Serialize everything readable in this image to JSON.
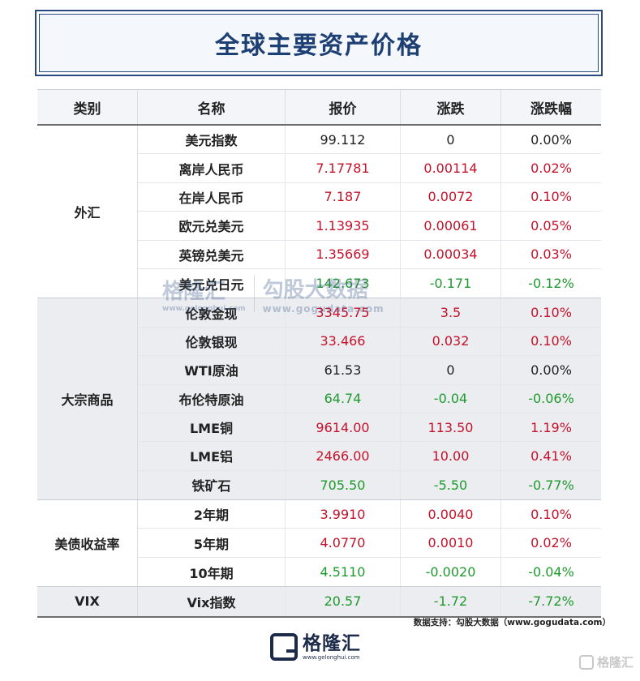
{
  "title": "全球主要资产价格",
  "headers": [
    "类别",
    "名称",
    "报价",
    "涨跌",
    "涨跌幅"
  ],
  "groups": [
    {
      "category": "外汇",
      "rows": [
        {
          "name": "美元指数",
          "price": "99.112",
          "change": "0",
          "pct": "0.00%",
          "trend": "flat"
        },
        {
          "name": "离岸人民币",
          "price": "7.17781",
          "change": "0.00114",
          "pct": "0.02%",
          "trend": "up"
        },
        {
          "name": "在岸人民币",
          "price": "7.187",
          "change": "0.0072",
          "pct": "0.10%",
          "trend": "up"
        },
        {
          "name": "欧元兑美元",
          "price": "1.13935",
          "change": "0.00061",
          "pct": "0.05%",
          "trend": "up"
        },
        {
          "name": "英镑兑美元",
          "price": "1.35669",
          "change": "0.00034",
          "pct": "0.03%",
          "trend": "up"
        },
        {
          "name": "美元兑日元",
          "price": "142.673",
          "change": "-0.171",
          "pct": "-0.12%",
          "trend": "down"
        }
      ]
    },
    {
      "category": "大宗商品",
      "rows": [
        {
          "name": "伦敦金现",
          "price": "3345.75",
          "change": "3.5",
          "pct": "0.10%",
          "trend": "up"
        },
        {
          "name": "伦敦银现",
          "price": "33.466",
          "change": "0.032",
          "pct": "0.10%",
          "trend": "up"
        },
        {
          "name": "WTI原油",
          "price": "61.53",
          "change": "0",
          "pct": "0.00%",
          "trend": "flat"
        },
        {
          "name": "布伦特原油",
          "price": "64.74",
          "change": "-0.04",
          "pct": "-0.06%",
          "trend": "down"
        },
        {
          "name": "LME铜",
          "price": "9614.00",
          "change": "113.50",
          "pct": "1.19%",
          "trend": "up"
        },
        {
          "name": "LME铝",
          "price": "2466.00",
          "change": "10.00",
          "pct": "0.41%",
          "trend": "up"
        },
        {
          "name": "铁矿石",
          "price": "705.50",
          "change": "-5.50",
          "pct": "-0.77%",
          "trend": "down"
        }
      ]
    },
    {
      "category": "美债收益率",
      "rows": [
        {
          "name": "2年期",
          "price": "3.9910",
          "change": "0.0040",
          "pct": "0.10%",
          "trend": "up"
        },
        {
          "name": "5年期",
          "price": "4.0770",
          "change": "0.0010",
          "pct": "0.02%",
          "trend": "up"
        },
        {
          "name": "10年期",
          "price": "4.5110",
          "change": "-0.0020",
          "pct": "-0.04%",
          "trend": "down"
        }
      ]
    },
    {
      "category": "VIX",
      "rows": [
        {
          "name": "Vix指数",
          "price": "20.57",
          "change": "-1.72",
          "pct": "-7.72%",
          "trend": "down"
        }
      ]
    }
  ],
  "source": "数据支持：勾股大数据（www.gogudata.com）",
  "logo": {
    "name": "格隆汇",
    "url": "www.gelonghui.com",
    "icon": "gelonghui-logo-icon"
  },
  "watermarks": {
    "center_left": "格隆汇",
    "center_left_url": "www.gelonghui.com",
    "center_right": "勾股大数据",
    "center_right_url": "www.gogudata.com",
    "corner": "格隆汇"
  },
  "colors": {
    "up": "#c4122b",
    "down": "#1f9a2e",
    "flat": "#222222",
    "title": "#1e3f73"
  }
}
